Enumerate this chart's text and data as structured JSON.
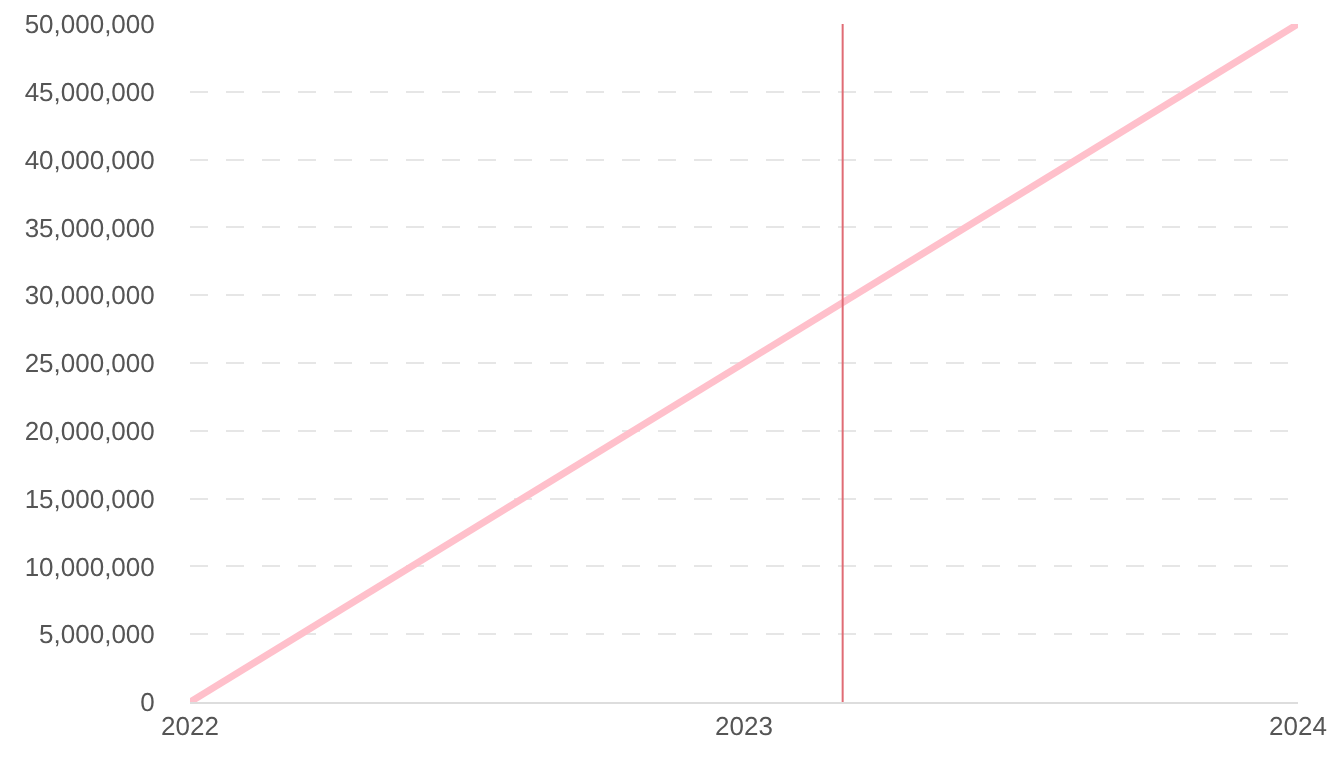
{
  "chart_data": {
    "type": "line",
    "x": [
      "2022",
      "2024"
    ],
    "series": [
      {
        "color": "#ffc0cb",
        "values": [
          0,
          50000000
        ]
      }
    ],
    "xlim": [
      "2022",
      "2024"
    ],
    "xticks": [
      "2022",
      "2023",
      "2024"
    ],
    "ylim": [
      0,
      50000000
    ],
    "yticks": [
      {
        "value": 0,
        "label": "0"
      },
      {
        "value": 5000000,
        "label": "5,000,000"
      },
      {
        "value": 10000000,
        "label": "10,000,000"
      },
      {
        "value": 15000000,
        "label": "15,000,000"
      },
      {
        "value": 20000000,
        "label": "20,000,000"
      },
      {
        "value": 25000000,
        "label": "25,000,000"
      },
      {
        "value": 30000000,
        "label": "30,000,000"
      },
      {
        "value": 35000000,
        "label": "35,000,000"
      },
      {
        "value": 40000000,
        "label": "40,000,000"
      },
      {
        "value": 45000000,
        "label": "45,000,000"
      },
      {
        "value": 50000000,
        "label": "50,000,000"
      }
    ],
    "ref_lines": [
      {
        "axis": "x",
        "value": "2023-03-07",
        "color": "#e06c75"
      }
    ],
    "grid": "y",
    "marker": "none",
    "line_style": "solid"
  }
}
